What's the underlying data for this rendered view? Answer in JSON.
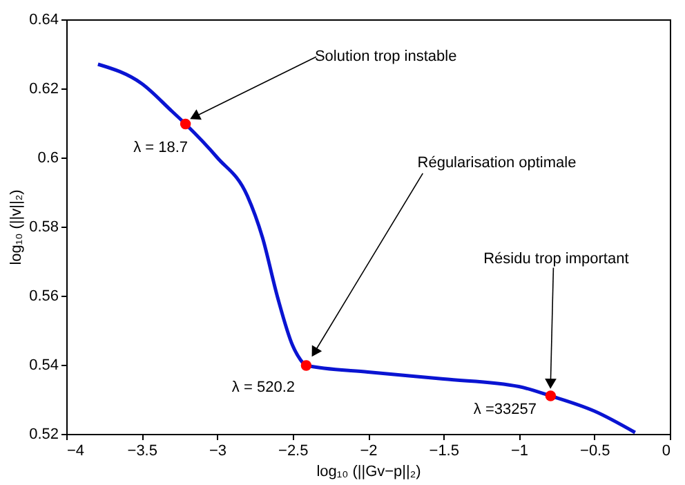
{
  "chart_data": {
    "type": "line",
    "xlabel": "log₁₀ (||Gv−p||₂)",
    "ylabel": "log₁₀ (||v||₂)",
    "xlim": [
      -4,
      0
    ],
    "xticks": [
      -4,
      -3.5,
      -3,
      -2.5,
      -2,
      -1.5,
      -1,
      -0.5,
      0
    ],
    "ylim": [
      0.52,
      0.64
    ],
    "yticks": [
      0.52,
      0.54,
      0.56,
      0.58,
      0.6,
      0.62,
      0.64
    ],
    "grid": false,
    "series": [
      {
        "color": "#0a14d2",
        "marker": "none",
        "x": [
          -3.79,
          -3.5,
          -3.3,
          -3.21,
          -3.0,
          -2.8,
          -2.7,
          -2.6,
          -2.5,
          -2.45,
          -2.41,
          -2.0,
          -1.5,
          -1.0,
          -0.79,
          -0.5,
          -0.23
        ],
        "values": [
          0.627,
          0.6214,
          0.6134,
          0.6097,
          0.6,
          0.5889,
          0.5769,
          0.5596,
          0.5456,
          0.5416,
          0.5398,
          0.5379,
          0.5359,
          0.5337,
          0.531,
          0.5266,
          0.5204
        ]
      },
      {
        "type": "scatter",
        "color": "#ff0000",
        "marker": "circle",
        "x": [
          -3.21,
          -2.41,
          -0.79
        ],
        "values": [
          0.6097,
          0.5398,
          0.531
        ]
      }
    ],
    "annotations": [
      {
        "text": "Solution trop instable",
        "x": -3.14,
        "y": 0.612
      },
      {
        "text": "Régularisation optimale",
        "x": -2.35,
        "y": 0.544
      },
      {
        "text": "Résidu trop important",
        "x": -0.79,
        "y": 0.535
      },
      {
        "text": "λ = 18.7",
        "x": -3.21,
        "y": 0.6097
      },
      {
        "text": "λ = 520.2",
        "x": -2.41,
        "y": 0.5398
      },
      {
        "text": "λ =33257",
        "x": -0.79,
        "y": 0.531
      }
    ]
  }
}
